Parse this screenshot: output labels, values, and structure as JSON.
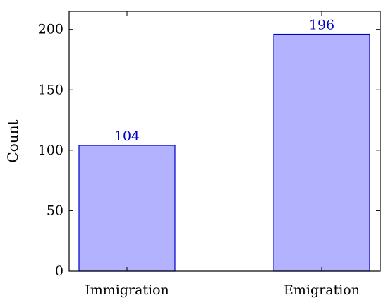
{
  "chart_data": {
    "type": "bar",
    "categories": [
      "Immigration",
      "Emigration"
    ],
    "values": [
      104,
      196
    ],
    "data_labels": [
      "104",
      "196"
    ],
    "title": "",
    "xlabel": "",
    "ylabel": "Count",
    "ylim": [
      0,
      215
    ],
    "yticks": [
      0,
      50,
      100,
      150,
      200
    ],
    "grid": false,
    "colors": {
      "bar_fill": "#b2b2ff",
      "bar_stroke": "#0000cc",
      "data_label": "#0000cc",
      "axis": "#000000"
    }
  }
}
